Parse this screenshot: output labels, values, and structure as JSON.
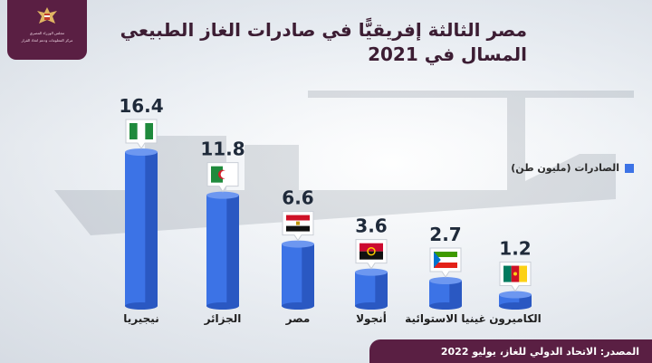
{
  "header": {
    "logo_text_1": "مجلس الوزراء المصري",
    "logo_text_2": "مركز المعلومات ودعم اتخاذ القرار"
  },
  "title": {
    "line1": "مصر الثالثة إفريقيًّا في صادرات الغاز الطبيعي",
    "line2": "المسال في 2021"
  },
  "legend": {
    "label": "الصادرات (مليون طن)",
    "color": "#3c73e6"
  },
  "source": "المصدر: الاتحاد الدولي للغاز، يوليو 2022",
  "chart_data": {
    "type": "bar",
    "title": "مصر الثالثة إفريقيًّا في صادرات الغاز الطبيعي المسال في 2021",
    "categories": [
      "نيجيريا",
      "الجزائر",
      "مصر",
      "أنجولا",
      "غينيا الاستوائية",
      "الكاميرون"
    ],
    "flags": [
      "nigeria",
      "algeria",
      "egypt",
      "angola",
      "equatorial-guinea",
      "cameroon"
    ],
    "series": [
      {
        "name": "الصادرات (مليون طن)",
        "values": [
          16.4,
          11.8,
          6.6,
          3.6,
          2.7,
          1.2
        ]
      }
    ],
    "value_labels": [
      "16.4",
      "11.8",
      "6.6",
      "3.6",
      "2.7",
      "1.2"
    ],
    "ylim": [
      0,
      16.4
    ],
    "bar_color": "#3c73e6"
  }
}
